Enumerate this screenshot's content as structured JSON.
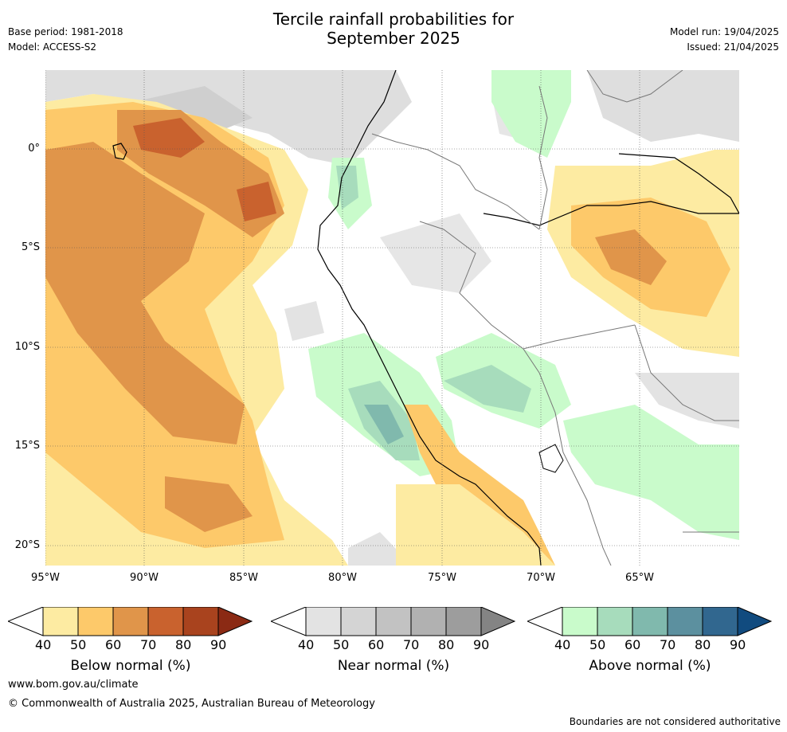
{
  "header": {
    "title_line1": "Tercile rainfall probabilities for",
    "title_line2": "September 2025",
    "base_period": "Base period: 1981-2018",
    "model": "Model: ACCESS-S2",
    "model_run": "Model run: 19/04/2025",
    "issued": "Issued: 21/04/2025"
  },
  "map": {
    "lat_labels": [
      "0°",
      "5°S",
      "10°S",
      "15°S",
      "20°S"
    ],
    "lon_labels": [
      "95°W",
      "90°W",
      "85°W",
      "80°W",
      "75°W",
      "70°W",
      "65°W"
    ]
  },
  "colorbars": [
    {
      "title": "Below normal (%)",
      "ticks": [
        "40",
        "50",
        "60",
        "70",
        "80",
        "90"
      ],
      "colors": [
        "#fdeba2",
        "#fdc96a",
        "#e0954a",
        "#c9622e",
        "#a9431e",
        "#8b2a14"
      ]
    },
    {
      "title": "Near normal (%)",
      "ticks": [
        "40",
        "50",
        "60",
        "70",
        "80",
        "90"
      ],
      "colors": [
        "#e3e3e3",
        "#d4d4d4",
        "#c2c2c2",
        "#b1b1b1",
        "#9d9d9d",
        "#848484"
      ]
    },
    {
      "title": "Above normal (%)",
      "ticks": [
        "40",
        "50",
        "60",
        "70",
        "80",
        "90"
      ],
      "colors": [
        "#c9fbcb",
        "#a7dcbc",
        "#80b9ad",
        "#5c909f",
        "#31678f",
        "#114b7f"
      ]
    }
  ],
  "footer": {
    "website": "www.bom.gov.au/climate",
    "copyright": "© Commonwealth of Australia 2025, Australian Bureau of Meteorology",
    "disclaimer": "Boundaries are not considered authoritative"
  }
}
